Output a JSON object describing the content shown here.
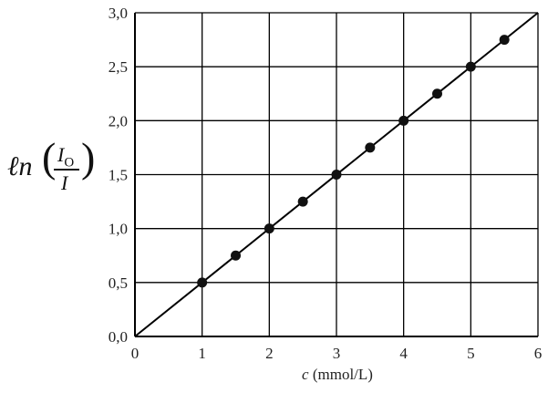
{
  "chart_data": {
    "type": "scatter",
    "xlabel_var": "c",
    "xlabel_unit": "(mmol/L)",
    "ylabel": {
      "fn": "ℓn",
      "numerator": "I",
      "numerator_sub": "O",
      "denominator": "I"
    },
    "x_ticks": [
      "0",
      "1",
      "2",
      "3",
      "4",
      "5",
      "6"
    ],
    "y_ticks": [
      "0,0",
      "0,5",
      "1,0",
      "1,5",
      "2,0",
      "2,5",
      "3,0"
    ],
    "xlim": [
      0,
      6
    ],
    "ylim": [
      0,
      3
    ],
    "grid": true,
    "points": [
      {
        "x": 1.0,
        "y": 0.5
      },
      {
        "x": 1.5,
        "y": 0.75
      },
      {
        "x": 2.0,
        "y": 1.0
      },
      {
        "x": 2.5,
        "y": 1.25
      },
      {
        "x": 3.0,
        "y": 1.5
      },
      {
        "x": 3.5,
        "y": 1.75
      },
      {
        "x": 4.0,
        "y": 2.0
      },
      {
        "x": 4.5,
        "y": 2.25
      },
      {
        "x": 5.0,
        "y": 2.5
      },
      {
        "x": 5.5,
        "y": 2.75
      }
    ],
    "fit_line": {
      "x": [
        0,
        6
      ],
      "y": [
        0,
        3
      ]
    }
  }
}
